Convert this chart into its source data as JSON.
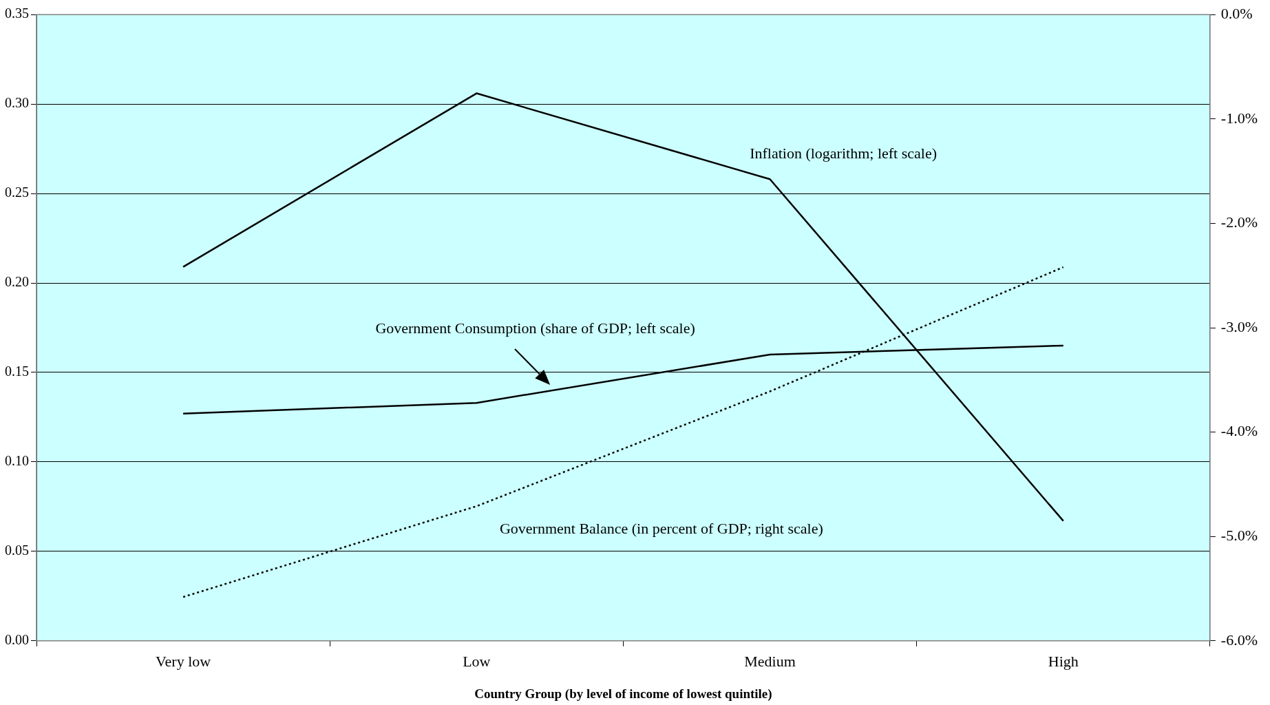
{
  "chart_data": {
    "type": "line",
    "xlabel": "Country Group (by level of income of lowest quintile)",
    "categories": [
      "Very low",
      "Low",
      "Medium",
      "High"
    ],
    "ylim": [
      0,
      0.35
    ],
    "yticks": [
      {
        "value": 0,
        "label": "0.00"
      },
      {
        "value": 0.05,
        "label": "0.05"
      },
      {
        "value": 0.1,
        "label": "0.10"
      },
      {
        "value": 0.15,
        "label": "0.15"
      },
      {
        "value": 0.2,
        "label": "0.20"
      },
      {
        "value": 0.25,
        "label": "0.25"
      },
      {
        "value": 0.3,
        "label": "0.30"
      },
      {
        "value": 0.35,
        "label": "0.35"
      }
    ],
    "y2lim": [
      -6,
      0
    ],
    "y2ticks": [
      {
        "value": -6,
        "label": "-6.0%"
      },
      {
        "value": -5,
        "label": "-5.0%"
      },
      {
        "value": -4,
        "label": "-4.0%"
      },
      {
        "value": -3,
        "label": "-3.0%"
      },
      {
        "value": -2,
        "label": "-2.0%"
      },
      {
        "value": -1,
        "label": "-1.0%"
      },
      {
        "value": 0,
        "label": "0.0%"
      }
    ],
    "grid": "y",
    "legend": false,
    "marker": "none",
    "series": [
      {
        "name": "Inflation (logarithm; left scale)",
        "color": "#000000",
        "values": [
          0.209,
          0.306,
          0.258,
          0.067
        ],
        "line_style": "solid"
      },
      {
        "name": "Government Consumption (share of GDP; left scale)",
        "color": "#000000",
        "values": [
          0.127,
          0.133,
          0.16,
          0.165
        ],
        "line_style": "solid"
      },
      {
        "name": "Government Balance (in percent of GDP; right scale)",
        "color": "#000000",
        "values": [
          -5.58,
          -4.71,
          -3.61,
          -2.42
        ],
        "line_style": "dotted",
        "axis": "y2"
      }
    ]
  }
}
